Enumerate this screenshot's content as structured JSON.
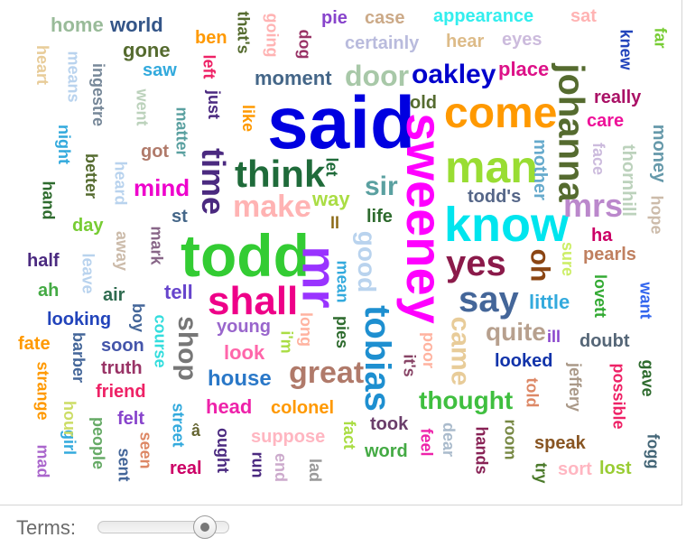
{
  "cloud": {
    "words": [
      {
        "text": "said",
        "color": "#0000e0",
        "size": 82,
        "rot": 0
      },
      {
        "text": "sweeney",
        "color": "#ff00ff",
        "size": 56,
        "rot": 90
      },
      {
        "text": "todd",
        "color": "#33cc33",
        "size": 66,
        "rot": 0
      },
      {
        "text": "know",
        "color": "#00e5ee",
        "size": 54,
        "rot": 0
      },
      {
        "text": "come",
        "color": "#ff9900",
        "size": 48,
        "rot": 0
      },
      {
        "text": "man",
        "color": "#99dd33",
        "size": 50,
        "rot": 0
      },
      {
        "text": "johanna",
        "color": "#556b2f",
        "size": 40,
        "rot": 90
      },
      {
        "text": "mr",
        "color": "#9933ff",
        "size": 54,
        "rot": 90
      },
      {
        "text": "shall",
        "color": "#ee0088",
        "size": 44,
        "rot": 0
      },
      {
        "text": "think",
        "color": "#1f6b3a",
        "size": 42,
        "rot": 0
      },
      {
        "text": "time",
        "color": "#4b2a80",
        "size": 36,
        "rot": 90
      },
      {
        "text": "tobias",
        "color": "#1e8fd0",
        "size": 40,
        "rot": 90
      },
      {
        "text": "say",
        "color": "#446699",
        "size": 40,
        "rot": 0
      },
      {
        "text": "yes",
        "color": "#8b1a4a",
        "size": 40,
        "rot": 0
      },
      {
        "text": "great",
        "color": "#b07a6a",
        "size": 34,
        "rot": 0
      },
      {
        "text": "make",
        "color": "#ffb3b3",
        "size": 34,
        "rot": 0
      },
      {
        "text": "oakley",
        "color": "#0000cc",
        "size": 30,
        "rot": 0
      },
      {
        "text": "door",
        "color": "#a8c8a8",
        "size": 32,
        "rot": 0
      },
      {
        "text": "mrs",
        "color": "#bb88cc",
        "size": 36,
        "rot": 0
      },
      {
        "text": "sir",
        "color": "#5aa0a0",
        "size": 30,
        "rot": 0
      },
      {
        "text": "came",
        "color": "#e8cc99",
        "size": 30,
        "rot": 90
      },
      {
        "text": "shop",
        "color": "#777777",
        "size": 30,
        "rot": 90
      },
      {
        "text": "good",
        "color": "#b9d3ee",
        "size": 28,
        "rot": 90
      },
      {
        "text": "quite",
        "color": "#b7a08e",
        "size": 28,
        "rot": 0
      },
      {
        "text": "thought",
        "color": "#3fbf3f",
        "size": 28,
        "rot": 0
      },
      {
        "text": "oh",
        "color": "#8b4513",
        "size": 30,
        "rot": 90
      },
      {
        "text": "mind",
        "color": "#ee00cc",
        "size": 26,
        "rot": 0
      },
      {
        "text": "house",
        "color": "#2a78c8",
        "size": 24,
        "rot": 0
      },
      {
        "text": "moment",
        "color": "#446688",
        "size": 22,
        "rot": 0
      },
      {
        "text": "place",
        "color": "#dd1188",
        "size": 22,
        "rot": 0
      },
      {
        "text": "little",
        "color": "#33aadd",
        "size": 22,
        "rot": 0
      },
      {
        "text": "really",
        "color": "#aa1166",
        "size": 20,
        "rot": 0
      },
      {
        "text": "mother",
        "color": "#66aacc",
        "size": 20,
        "rot": 90
      },
      {
        "text": "thornhill",
        "color": "#bcd2bc",
        "size": 20,
        "rot": 90
      },
      {
        "text": "money",
        "color": "#6699aa",
        "size": 20,
        "rot": 90
      },
      {
        "text": "pearls",
        "color": "#c08060",
        "size": 20,
        "rot": 0
      },
      {
        "text": "head",
        "color": "#ee22aa",
        "size": 22,
        "rot": 0
      },
      {
        "text": "colonel",
        "color": "#ff9900",
        "size": 20,
        "rot": 0
      },
      {
        "text": "tell",
        "color": "#6644cc",
        "size": 22,
        "rot": 0
      },
      {
        "text": "young",
        "color": "#9966cc",
        "size": 20,
        "rot": 0
      },
      {
        "text": "look",
        "color": "#ff66aa",
        "size": 22,
        "rot": 0
      },
      {
        "text": "looked",
        "color": "#1133aa",
        "size": 20,
        "rot": 0
      },
      {
        "text": "doubt",
        "color": "#556677",
        "size": 20,
        "rot": 0
      },
      {
        "text": "possible",
        "color": "#ee2266",
        "size": 18,
        "rot": 90
      },
      {
        "text": "friend",
        "color": "#ee2266",
        "size": 20,
        "rot": 0
      },
      {
        "text": "truth",
        "color": "#993366",
        "size": 20,
        "rot": 0
      },
      {
        "text": "soon",
        "color": "#4455aa",
        "size": 20,
        "rot": 0
      },
      {
        "text": "looking",
        "color": "#2244bb",
        "size": 20,
        "rot": 0
      },
      {
        "text": "felt",
        "color": "#8844cc",
        "size": 20,
        "rot": 0
      },
      {
        "text": "suppose",
        "color": "#ffb6c1",
        "size": 20,
        "rot": 0
      },
      {
        "text": "speak",
        "color": "#885522",
        "size": 20,
        "rot": 0
      },
      {
        "text": "took",
        "color": "#6a3d6a",
        "size": 20,
        "rot": 0
      },
      {
        "text": "word",
        "color": "#44aa44",
        "size": 20,
        "rot": 0
      },
      {
        "text": "real",
        "color": "#cc0066",
        "size": 20,
        "rot": 0
      },
      {
        "text": "lost",
        "color": "#99cc33",
        "size": 20,
        "rot": 0
      },
      {
        "text": "sort",
        "color": "#ffb6c1",
        "size": 20,
        "rot": 0
      },
      {
        "text": "fate",
        "color": "#ff9900",
        "size": 20,
        "rot": 0
      },
      {
        "text": "half",
        "color": "#4b2a80",
        "size": 20,
        "rot": 0
      },
      {
        "text": "ah",
        "color": "#44aa44",
        "size": 20,
        "rot": 0
      },
      {
        "text": "air",
        "color": "#2e6b4f",
        "size": 20,
        "rot": 0
      },
      {
        "text": "day",
        "color": "#77cc33",
        "size": 20,
        "rot": 0
      },
      {
        "text": "st",
        "color": "#446688",
        "size": 20,
        "rot": 0
      },
      {
        "text": "way",
        "color": "#aadd44",
        "size": 22,
        "rot": 0
      },
      {
        "text": "life",
        "color": "#2e6b2e",
        "size": 20,
        "rot": 0
      },
      {
        "text": "ll",
        "color": "#8b6914",
        "size": 18,
        "rot": 0
      },
      {
        "text": "todd's",
        "color": "#556688",
        "size": 20,
        "rot": 0
      },
      {
        "text": "ha",
        "color": "#cc0066",
        "size": 20,
        "rot": 0
      },
      {
        "text": "care",
        "color": "#ee1199",
        "size": 20,
        "rot": 0
      },
      {
        "text": "face",
        "color": "#ccbbdd",
        "size": 18,
        "rot": 90
      },
      {
        "text": "hope",
        "color": "#ccbbaa",
        "size": 18,
        "rot": 90
      },
      {
        "text": "sure",
        "color": "#ccee66",
        "size": 18,
        "rot": 90
      },
      {
        "text": "lovett",
        "color": "#33aa33",
        "size": 18,
        "rot": 90
      },
      {
        "text": "want",
        "color": "#3366ee",
        "size": 18,
        "rot": 90
      },
      {
        "text": "gave",
        "color": "#2e6b2e",
        "size": 18,
        "rot": 90
      },
      {
        "text": "fogg",
        "color": "#446677",
        "size": 18,
        "rot": 90
      },
      {
        "text": "jeffery",
        "color": "#aa9988",
        "size": 18,
        "rot": 90
      },
      {
        "text": "ill",
        "color": "#8844cc",
        "size": 18,
        "rot": 0
      },
      {
        "text": "told",
        "color": "#dd8866",
        "size": 18,
        "rot": 90
      },
      {
        "text": "room",
        "color": "#778844",
        "size": 18,
        "rot": 90
      },
      {
        "text": "hands",
        "color": "#882255",
        "size": 18,
        "rot": 90
      },
      {
        "text": "try",
        "color": "#4b7a2a",
        "size": 18,
        "rot": 90
      },
      {
        "text": "dear",
        "color": "#aabbcc",
        "size": 18,
        "rot": 90
      },
      {
        "text": "feel",
        "color": "#ee22aa",
        "size": 18,
        "rot": 90
      },
      {
        "text": "poor",
        "color": "#ffb3a0",
        "size": 18,
        "rot": 90
      },
      {
        "text": "it's",
        "color": "#884466",
        "size": 18,
        "rot": 90
      },
      {
        "text": "fact",
        "color": "#aadd44",
        "size": 18,
        "rot": 90
      },
      {
        "text": "â",
        "color": "#666633",
        "size": 18,
        "rot": 0
      },
      {
        "text": "ought",
        "color": "#4b2a80",
        "size": 18,
        "rot": 90
      },
      {
        "text": "end",
        "color": "#ccaacc",
        "size": 18,
        "rot": 90
      },
      {
        "text": "lad",
        "color": "#999999",
        "size": 18,
        "rot": 90
      },
      {
        "text": "run",
        "color": "#4b2a80",
        "size": 18,
        "rot": 90
      },
      {
        "text": "street",
        "color": "#33aadd",
        "size": 18,
        "rot": 90
      },
      {
        "text": "seen",
        "color": "#dd8866",
        "size": 18,
        "rot": 90
      },
      {
        "text": "sent",
        "color": "#446699",
        "size": 18,
        "rot": 90
      },
      {
        "text": "people",
        "color": "#66aa66",
        "size": 18,
        "rot": 90
      },
      {
        "text": "girl",
        "color": "#33aadd",
        "size": 18,
        "rot": 90
      },
      {
        "text": "mad",
        "color": "#aa66cc",
        "size": 18,
        "rot": 90
      },
      {
        "text": "hour",
        "color": "#ccdd66",
        "size": 18,
        "rot": 90
      },
      {
        "text": "strange",
        "color": "#ff9900",
        "size": 18,
        "rot": 90
      },
      {
        "text": "barber",
        "color": "#446699",
        "size": 18,
        "rot": 90
      },
      {
        "text": "course",
        "color": "#33dddd",
        "size": 18,
        "rot": 90
      },
      {
        "text": "boy",
        "color": "#446699",
        "size": 18,
        "rot": 90
      },
      {
        "text": "i'm",
        "color": "#aadd44",
        "size": 18,
        "rot": 90
      },
      {
        "text": "long",
        "color": "#ffb3a0",
        "size": 18,
        "rot": 90
      },
      {
        "text": "pies",
        "color": "#2e6b2e",
        "size": 18,
        "rot": 90
      },
      {
        "text": "mean",
        "color": "#33aadd",
        "size": 18,
        "rot": 90
      },
      {
        "text": "leave",
        "color": "#b9d3ee",
        "size": 18,
        "rot": 90
      },
      {
        "text": "away",
        "color": "#ccbbaa",
        "size": 18,
        "rot": 90
      },
      {
        "text": "mark",
        "color": "#886688",
        "size": 18,
        "rot": 90
      },
      {
        "text": "heard",
        "color": "#b9d3ee",
        "size": 18,
        "rot": 90
      },
      {
        "text": "better",
        "color": "#556b2f",
        "size": 18,
        "rot": 90
      },
      {
        "text": "hand",
        "color": "#2e6b2e",
        "size": 18,
        "rot": 90
      },
      {
        "text": "night",
        "color": "#33aadd",
        "size": 18,
        "rot": 90
      },
      {
        "text": "means",
        "color": "#b9d3ee",
        "size": 18,
        "rot": 90
      },
      {
        "text": "ingestre",
        "color": "#778899",
        "size": 18,
        "rot": 90
      },
      {
        "text": "heart",
        "color": "#e8cc99",
        "size": 18,
        "rot": 90
      },
      {
        "text": "went",
        "color": "#bcd2bc",
        "size": 18,
        "rot": 90
      },
      {
        "text": "matter",
        "color": "#5aa0a0",
        "size": 18,
        "rot": 90
      },
      {
        "text": "got",
        "color": "#b07a6a",
        "size": 20,
        "rot": 0
      },
      {
        "text": "left",
        "color": "#ee2266",
        "size": 18,
        "rot": 90
      },
      {
        "text": "just",
        "color": "#4b2a80",
        "size": 18,
        "rot": 90
      },
      {
        "text": "like",
        "color": "#ff9900",
        "size": 18,
        "rot": 90
      },
      {
        "text": "let",
        "color": "#1f6b3a",
        "size": 18,
        "rot": 90
      },
      {
        "text": "dog",
        "color": "#993366",
        "size": 18,
        "rot": 90
      },
      {
        "text": "going",
        "color": "#ffb3b3",
        "size": 18,
        "rot": 90
      },
      {
        "text": "that's",
        "color": "#556b2f",
        "size": 18,
        "rot": 90
      },
      {
        "text": "old",
        "color": "#556b2f",
        "size": 20,
        "rot": 0
      },
      {
        "text": "home",
        "color": "#99bb99",
        "size": 22,
        "rot": 0
      },
      {
        "text": "world",
        "color": "#335588",
        "size": 22,
        "rot": 0
      },
      {
        "text": "gone",
        "color": "#556b2f",
        "size": 22,
        "rot": 0
      },
      {
        "text": "ben",
        "color": "#ff9900",
        "size": 20,
        "rot": 0
      },
      {
        "text": "saw",
        "color": "#33aadd",
        "size": 20,
        "rot": 0
      },
      {
        "text": "pie",
        "color": "#8844cc",
        "size": 20,
        "rot": 0
      },
      {
        "text": "case",
        "color": "#ccaa88",
        "size": 20,
        "rot": 0
      },
      {
        "text": "certainly",
        "color": "#b9bbdd",
        "size": 20,
        "rot": 0
      },
      {
        "text": "hear",
        "color": "#ddbb88",
        "size": 20,
        "rot": 0
      },
      {
        "text": "eyes",
        "color": "#ccbbdd",
        "size": 20,
        "rot": 0
      },
      {
        "text": "appearance",
        "color": "#33eeee",
        "size": 20,
        "rot": 0
      },
      {
        "text": "sat",
        "color": "#ffb3b3",
        "size": 20,
        "rot": 0
      },
      {
        "text": "knew",
        "color": "#2244bb",
        "size": 18,
        "rot": 90
      },
      {
        "text": "far",
        "color": "#77cc33",
        "size": 18,
        "rot": 90
      }
    ]
  },
  "controls": {
    "terms_label": "Terms:",
    "terms_level": 0.88
  }
}
